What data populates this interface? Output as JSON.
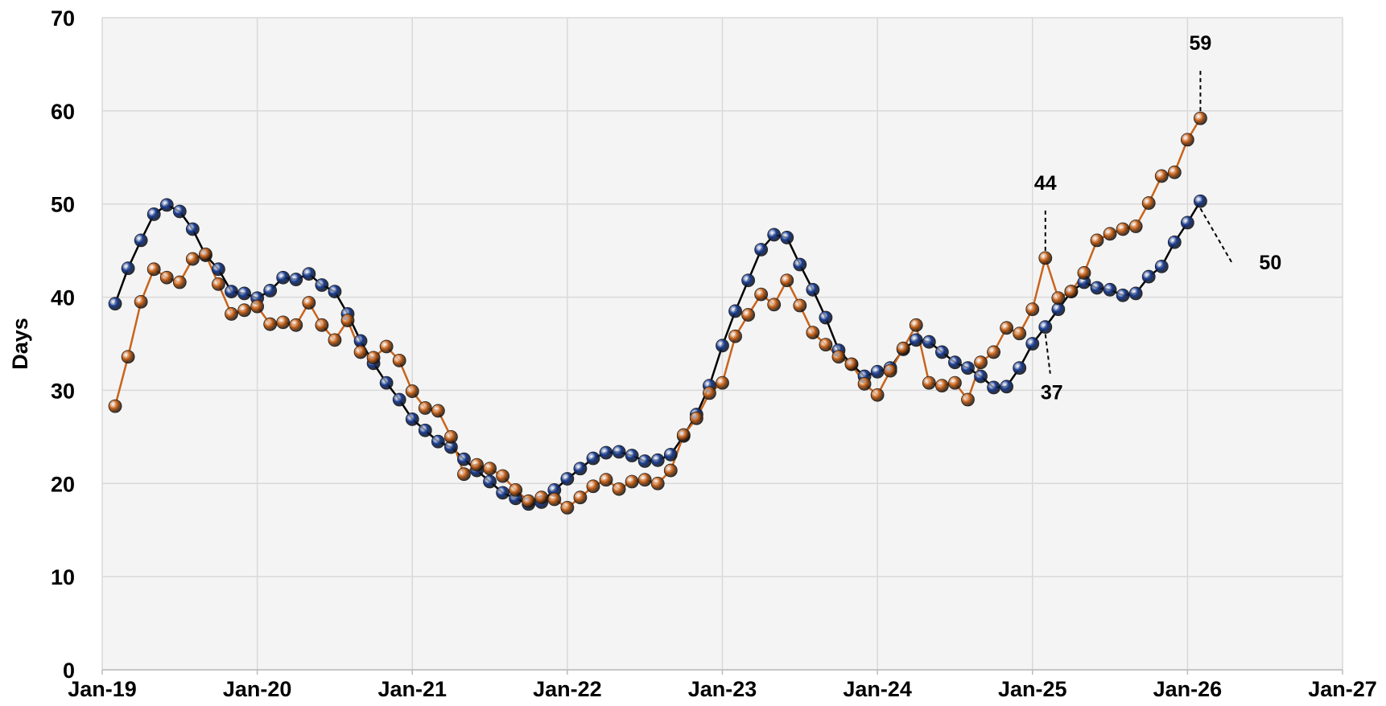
{
  "chart_data": {
    "type": "line",
    "ylabel": "Days",
    "x": [
      "2019-02",
      "2019-03",
      "2019-04",
      "2019-05",
      "2019-06",
      "2019-07",
      "2019-08",
      "2019-09",
      "2019-10",
      "2019-11",
      "2019-12",
      "2020-01",
      "2020-02",
      "2020-03",
      "2020-04",
      "2020-05",
      "2020-06",
      "2020-07",
      "2020-08",
      "2020-09",
      "2020-10",
      "2020-11",
      "2020-12",
      "2021-01",
      "2021-02",
      "2021-03",
      "2021-04",
      "2021-05",
      "2021-06",
      "2021-07",
      "2021-08",
      "2021-09",
      "2021-10",
      "2021-11",
      "2021-12",
      "2022-01",
      "2022-02",
      "2022-03",
      "2022-04",
      "2022-05",
      "2022-06",
      "2022-07",
      "2022-08",
      "2022-09",
      "2022-10",
      "2022-11",
      "2022-12",
      "2023-01",
      "2023-02",
      "2023-03",
      "2023-04",
      "2023-05",
      "2023-06",
      "2023-07",
      "2023-08",
      "2023-09",
      "2023-10",
      "2023-11",
      "2023-12",
      "2024-01",
      "2024-02",
      "2024-03",
      "2024-04",
      "2024-05",
      "2024-06",
      "2024-07",
      "2024-08",
      "2024-09",
      "2024-10",
      "2024-11",
      "2024-12",
      "2025-01",
      "2025-02",
      "2025-03",
      "2025-04",
      "2025-05",
      "2025-06",
      "2025-07",
      "2025-08",
      "2025-09",
      "2025-10",
      "2025-11",
      "2025-12",
      "2026-01",
      "2026-02"
    ],
    "series": [
      {
        "color": "#1c3f94",
        "line_color": "#000000",
        "values": [
          39.3,
          43.1,
          46.1,
          48.9,
          49.9,
          49.2,
          47.3,
          44.5,
          43.0,
          40.6,
          40.4,
          39.9,
          40.7,
          42.1,
          41.9,
          42.5,
          41.3,
          40.6,
          38.2,
          35.3,
          32.9,
          30.8,
          29.0,
          26.9,
          25.7,
          24.5,
          23.9,
          22.6,
          21.4,
          20.2,
          19.0,
          18.4,
          17.8,
          18.0,
          19.3,
          20.5,
          21.6,
          22.7,
          23.3,
          23.4,
          23.0,
          22.4,
          22.5,
          23.1,
          25.1,
          27.4,
          30.5,
          34.8,
          38.5,
          41.8,
          45.1,
          46.7,
          46.4,
          43.5,
          40.8,
          37.8,
          34.3,
          32.8,
          31.5,
          32.0,
          32.4,
          34.4,
          35.4,
          35.2,
          34.1,
          33.0,
          32.4,
          31.5,
          30.3,
          30.4,
          32.4,
          35.0,
          36.8,
          38.7,
          40.6,
          41.6,
          41.0,
          40.8,
          40.2,
          40.4,
          42.2,
          43.3,
          45.9,
          48.0,
          50.3
        ],
        "value_labels": [
          null,
          null,
          null,
          null,
          null,
          null,
          null,
          null,
          null,
          null,
          null,
          null,
          null,
          null,
          null,
          null,
          null,
          null,
          null,
          null,
          null,
          null,
          null,
          null,
          null,
          null,
          null,
          null,
          null,
          null,
          null,
          null,
          null,
          null,
          null,
          null,
          null,
          null,
          null,
          null,
          null,
          null,
          null,
          null,
          null,
          null,
          null,
          null,
          null,
          null,
          null,
          null,
          null,
          null,
          null,
          null,
          null,
          null,
          null,
          null,
          null,
          null,
          null,
          null,
          null,
          null,
          null,
          null,
          null,
          null,
          null,
          null,
          "37",
          null,
          null,
          null,
          null,
          null,
          null,
          null,
          null,
          null,
          null,
          null,
          "50"
        ]
      },
      {
        "color": "#c8641c",
        "line_color": "#c8641c",
        "values": [
          28.3,
          33.6,
          39.5,
          43.0,
          42.1,
          41.6,
          44.1,
          44.6,
          41.4,
          38.2,
          38.6,
          39.0,
          37.1,
          37.3,
          37.0,
          39.4,
          37.0,
          35.4,
          37.5,
          34.1,
          33.5,
          34.7,
          33.2,
          29.9,
          28.1,
          27.8,
          25.0,
          21.0,
          22.0,
          21.6,
          20.8,
          19.3,
          18.1,
          18.5,
          18.3,
          17.4,
          18.5,
          19.7,
          20.4,
          19.4,
          20.2,
          20.4,
          20.0,
          21.4,
          25.2,
          27.0,
          29.7,
          30.8,
          35.8,
          38.1,
          40.3,
          39.2,
          41.8,
          39.1,
          36.2,
          34.9,
          33.6,
          32.8,
          30.7,
          29.5,
          32.1,
          34.5,
          37.0,
          30.8,
          30.5,
          30.8,
          29.0,
          33.0,
          34.1,
          36.7,
          36.1,
          38.7,
          44.2,
          39.9,
          40.6,
          42.6,
          46.1,
          46.8,
          47.3,
          47.6,
          50.1,
          53.0,
          53.4,
          56.9,
          59.2
        ],
        "value_labels": [
          null,
          null,
          null,
          null,
          null,
          null,
          null,
          null,
          null,
          null,
          null,
          null,
          null,
          null,
          null,
          null,
          null,
          null,
          null,
          null,
          null,
          null,
          null,
          null,
          null,
          null,
          null,
          null,
          null,
          null,
          null,
          null,
          null,
          null,
          null,
          null,
          null,
          null,
          null,
          null,
          null,
          null,
          null,
          null,
          null,
          null,
          null,
          null,
          null,
          null,
          null,
          null,
          null,
          null,
          null,
          null,
          null,
          null,
          null,
          null,
          null,
          null,
          null,
          null,
          null,
          null,
          null,
          null,
          null,
          null,
          null,
          null,
          "44",
          null,
          null,
          null,
          null,
          null,
          null,
          null,
          null,
          null,
          null,
          null,
          "59"
        ]
      }
    ],
    "xlim": [
      "2019-01",
      "2027-01"
    ],
    "xticks": [
      {
        "value": "2019-01",
        "label": "Jan-19"
      },
      {
        "value": "2020-01",
        "label": "Jan-20"
      },
      {
        "value": "2021-01",
        "label": "Jan-21"
      },
      {
        "value": "2022-01",
        "label": "Jan-22"
      },
      {
        "value": "2023-01",
        "label": "Jan-23"
      },
      {
        "value": "2024-01",
        "label": "Jan-24"
      },
      {
        "value": "2025-01",
        "label": "Jan-25"
      },
      {
        "value": "2026-01",
        "label": "Jan-26"
      },
      {
        "value": "2027-01",
        "label": "Jan-27"
      }
    ],
    "ylim": [
      0,
      70
    ],
    "yticks": [
      0,
      10,
      20,
      30,
      40,
      50,
      60,
      70
    ],
    "grid": true
  }
}
